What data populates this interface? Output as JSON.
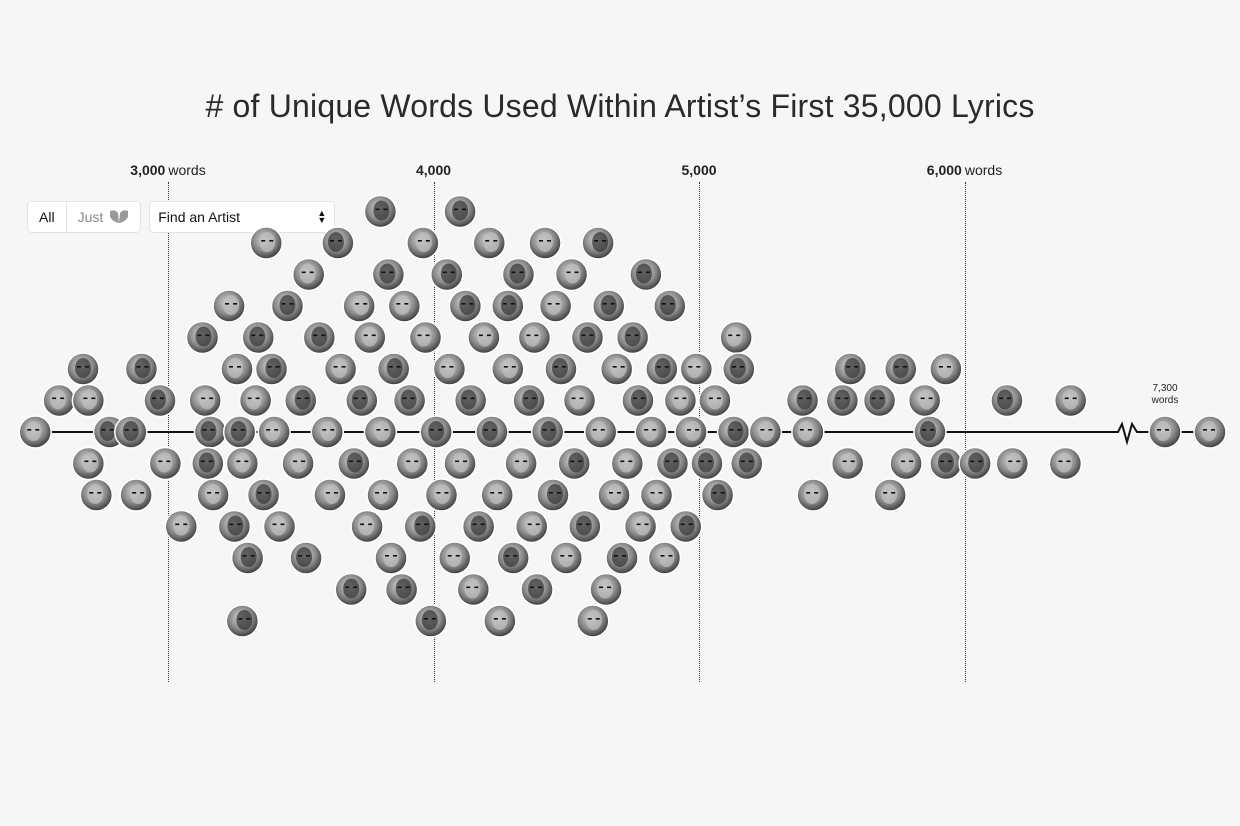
{
  "chart_data": {
    "type": "scatter",
    "title": "# of Unique Words Used Within Artist’s First 35,000 Lyrics",
    "xlabel": "",
    "ylabel": "",
    "xlim": [
      2470,
      6550
    ],
    "ticks": [
      {
        "value": 3000,
        "label": "3,000",
        "unit": "words"
      },
      {
        "value": 4000,
        "label": "4,000",
        "unit": ""
      },
      {
        "value": 5000,
        "label": "5,000",
        "unit": ""
      },
      {
        "value": 6000,
        "label": "6,000",
        "unit": "words"
      }
    ],
    "outlier": {
      "value": 7300,
      "label_value": "7,300",
      "label_unit": "words"
    },
    "grid": true,
    "points": [
      {
        "x": 2500,
        "row": 0
      },
      {
        "x": 2590,
        "row": 1
      },
      {
        "x": 2680,
        "row": 2
      },
      {
        "x": 2700,
        "row": 1
      },
      {
        "x": 2700,
        "row": -1
      },
      {
        "x": 2780,
        "row": 0
      },
      {
        "x": 2730,
        "row": -2
      },
      {
        "x": 2860,
        "row": 0
      },
      {
        "x": 2900,
        "row": 2
      },
      {
        "x": 2880,
        "row": -2
      },
      {
        "x": 2970,
        "row": 1
      },
      {
        "x": 2990,
        "row": -1
      },
      {
        "x": 3050,
        "row": -3
      },
      {
        "x": 3130,
        "row": 3
      },
      {
        "x": 3140,
        "row": 1
      },
      {
        "x": 3160,
        "row": 0
      },
      {
        "x": 3150,
        "row": -1
      },
      {
        "x": 3170,
        "row": -2
      },
      {
        "x": 3250,
        "row": -3
      },
      {
        "x": 3230,
        "row": 4
      },
      {
        "x": 3260,
        "row": 2
      },
      {
        "x": 3270,
        "row": 0
      },
      {
        "x": 3280,
        "row": -1
      },
      {
        "x": 3300,
        "row": -4
      },
      {
        "x": 3280,
        "row": -6
      },
      {
        "x": 3330,
        "row": 1
      },
      {
        "x": 3340,
        "row": 3
      },
      {
        "x": 3360,
        "row": -2
      },
      {
        "x": 3370,
        "row": 6
      },
      {
        "x": 3390,
        "row": 2
      },
      {
        "x": 3400,
        "row": 0
      },
      {
        "x": 3420,
        "row": -3
      },
      {
        "x": 3450,
        "row": 4
      },
      {
        "x": 3490,
        "row": -1
      },
      {
        "x": 3500,
        "row": 1
      },
      {
        "x": 3520,
        "row": -4
      },
      {
        "x": 3530,
        "row": 5
      },
      {
        "x": 3570,
        "row": 3
      },
      {
        "x": 3600,
        "row": 0
      },
      {
        "x": 3610,
        "row": -2
      },
      {
        "x": 3640,
        "row": 6
      },
      {
        "x": 3650,
        "row": 2
      },
      {
        "x": 3690,
        "row": -5
      },
      {
        "x": 3700,
        "row": -1
      },
      {
        "x": 3720,
        "row": 4
      },
      {
        "x": 3730,
        "row": 1
      },
      {
        "x": 3750,
        "row": -3
      },
      {
        "x": 3760,
        "row": 3
      },
      {
        "x": 3800,
        "row": 7
      },
      {
        "x": 3800,
        "row": 0
      },
      {
        "x": 3810,
        "row": -2
      },
      {
        "x": 3830,
        "row": 5
      },
      {
        "x": 3840,
        "row": -4
      },
      {
        "x": 3850,
        "row": 2
      },
      {
        "x": 3880,
        "row": -5
      },
      {
        "x": 3890,
        "row": 4
      },
      {
        "x": 3910,
        "row": 1
      },
      {
        "x": 3920,
        "row": -1
      },
      {
        "x": 3960,
        "row": 6
      },
      {
        "x": 3950,
        "row": -3
      },
      {
        "x": 3970,
        "row": 3
      },
      {
        "x": 3990,
        "row": -6
      },
      {
        "x": 4010,
        "row": 0
      },
      {
        "x": 4030,
        "row": -2
      },
      {
        "x": 4050,
        "row": 5
      },
      {
        "x": 4060,
        "row": 2
      },
      {
        "x": 4080,
        "row": -4
      },
      {
        "x": 4100,
        "row": 7
      },
      {
        "x": 4100,
        "row": -1
      },
      {
        "x": 4120,
        "row": 4
      },
      {
        "x": 4140,
        "row": 1
      },
      {
        "x": 4150,
        "row": -5
      },
      {
        "x": 4170,
        "row": -3
      },
      {
        "x": 4190,
        "row": 3
      },
      {
        "x": 4210,
        "row": 6
      },
      {
        "x": 4220,
        "row": 0
      },
      {
        "x": 4240,
        "row": -2
      },
      {
        "x": 4250,
        "row": -6
      },
      {
        "x": 4280,
        "row": 4
      },
      {
        "x": 4280,
        "row": 2
      },
      {
        "x": 4300,
        "row": -4
      },
      {
        "x": 4320,
        "row": 5
      },
      {
        "x": 4330,
        "row": -1
      },
      {
        "x": 4360,
        "row": 1
      },
      {
        "x": 4370,
        "row": -3
      },
      {
        "x": 4380,
        "row": 3
      },
      {
        "x": 4390,
        "row": -5
      },
      {
        "x": 4420,
        "row": 6
      },
      {
        "x": 4430,
        "row": 0
      },
      {
        "x": 4450,
        "row": -2
      },
      {
        "x": 4460,
        "row": 4
      },
      {
        "x": 4480,
        "row": 2
      },
      {
        "x": 4500,
        "row": -4
      },
      {
        "x": 4520,
        "row": 5
      },
      {
        "x": 4530,
        "row": -1
      },
      {
        "x": 4550,
        "row": 1
      },
      {
        "x": 4570,
        "row": -3
      },
      {
        "x": 4580,
        "row": 3
      },
      {
        "x": 4600,
        "row": -6
      },
      {
        "x": 4620,
        "row": 6
      },
      {
        "x": 4630,
        "row": 0
      },
      {
        "x": 4650,
        "row": -5
      },
      {
        "x": 4660,
        "row": 4
      },
      {
        "x": 4680,
        "row": -2
      },
      {
        "x": 4690,
        "row": 2
      },
      {
        "x": 4710,
        "row": -4
      },
      {
        "x": 4730,
        "row": -1
      },
      {
        "x": 4750,
        "row": 3
      },
      {
        "x": 4770,
        "row": 1
      },
      {
        "x": 4780,
        "row": -3
      },
      {
        "x": 4800,
        "row": 5
      },
      {
        "x": 4820,
        "row": 0
      },
      {
        "x": 4840,
        "row": -2
      },
      {
        "x": 4860,
        "row": 2
      },
      {
        "x": 4870,
        "row": -4
      },
      {
        "x": 4890,
        "row": 4
      },
      {
        "x": 4900,
        "row": -1
      },
      {
        "x": 4930,
        "row": 1
      },
      {
        "x": 4950,
        "row": -3
      },
      {
        "x": 4970,
        "row": 0
      },
      {
        "x": 4990,
        "row": 2
      },
      {
        "x": 5030,
        "row": -1
      },
      {
        "x": 5060,
        "row": 1
      },
      {
        "x": 5070,
        "row": -2
      },
      {
        "x": 5130,
        "row": 0
      },
      {
        "x": 5140,
        "row": 3
      },
      {
        "x": 5150,
        "row": 2
      },
      {
        "x": 5180,
        "row": -1
      },
      {
        "x": 5250,
        "row": 0
      },
      {
        "x": 5390,
        "row": 1
      },
      {
        "x": 5410,
        "row": 0
      },
      {
        "x": 5430,
        "row": -2
      },
      {
        "x": 5540,
        "row": 1
      },
      {
        "x": 5560,
        "row": -1
      },
      {
        "x": 5570,
        "row": 2
      },
      {
        "x": 5680,
        "row": 1
      },
      {
        "x": 5720,
        "row": -2
      },
      {
        "x": 5760,
        "row": 2
      },
      {
        "x": 5780,
        "row": -1
      },
      {
        "x": 5850,
        "row": 1
      },
      {
        "x": 5870,
        "row": 0
      },
      {
        "x": 5930,
        "row": 2
      },
      {
        "x": 5930,
        "row": -1
      },
      {
        "x": 6040,
        "row": -1
      },
      {
        "x": 6180,
        "row": -1
      },
      {
        "x": 6160,
        "row": 1
      },
      {
        "x": 6380,
        "row": -1
      },
      {
        "x": 6400,
        "row": 1
      }
    ],
    "outlier_points": [
      7300,
      7480
    ]
  },
  "controls": {
    "toggle_all": "All",
    "toggle_just": "Just",
    "find_artist": "Find an Artist"
  }
}
